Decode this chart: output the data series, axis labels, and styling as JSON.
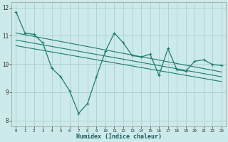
{
  "xlabel": "Humidex (Indice chaleur)",
  "bg_color": "#cdeaea",
  "grid_color": "#a8d0d0",
  "line_color": "#1e7b6e",
  "xlim": [
    -0.5,
    23.5
  ],
  "ylim": [
    7.8,
    12.2
  ],
  "xticks": [
    0,
    1,
    2,
    3,
    4,
    5,
    6,
    7,
    8,
    9,
    10,
    11,
    12,
    13,
    14,
    15,
    16,
    17,
    18,
    19,
    20,
    21,
    22,
    23
  ],
  "yticks": [
    8,
    9,
    10,
    11,
    12
  ],
  "main_x": [
    0,
    1,
    2,
    3,
    4,
    5,
    6,
    7,
    8,
    9,
    10,
    11,
    12,
    13,
    14,
    15,
    16,
    17,
    18,
    19,
    20,
    21,
    22,
    23
  ],
  "main_y": [
    11.85,
    11.1,
    11.05,
    10.75,
    9.85,
    9.55,
    9.05,
    8.25,
    8.6,
    9.55,
    10.45,
    11.1,
    10.75,
    10.3,
    10.25,
    10.35,
    9.6,
    10.55,
    9.8,
    9.75,
    10.1,
    10.15,
    9.98,
    9.95
  ],
  "trend1_x": [
    0,
    23
  ],
  "trend1_y": [
    11.1,
    9.72
  ],
  "trend2_x": [
    0,
    23
  ],
  "trend2_y": [
    10.85,
    9.55
  ],
  "trend3_x": [
    0,
    23
  ],
  "trend3_y": [
    10.65,
    9.38
  ]
}
